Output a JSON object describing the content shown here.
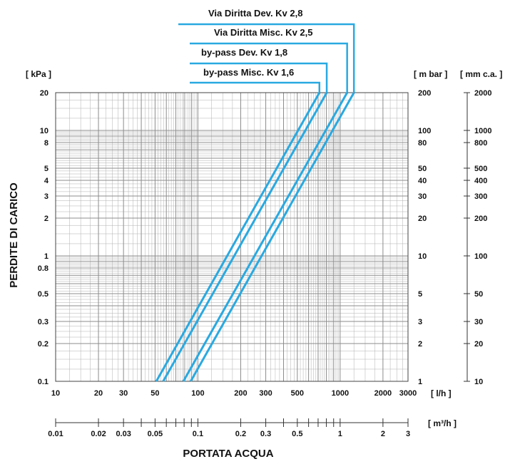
{
  "chart_data": {
    "type": "line",
    "x_scale": "log",
    "y_scale": "log",
    "xlim": [
      10,
      3000
    ],
    "ylim": [
      0.1,
      20
    ],
    "grid": true,
    "xlabel": "PORTATA ACQUA",
    "ylabel": "PERDITE DI CARICO",
    "x_unit": "[ l/h ]",
    "y_unit_left": "[ kPa ]",
    "y_unit_right_1": "[ m bar ]",
    "y_unit_right_2": "[ mm c.a. ]",
    "x2_unit": "[ m³/h ]",
    "x_ticks": [
      10,
      20,
      30,
      50,
      100,
      200,
      300,
      500,
      1000,
      2000,
      3000
    ],
    "x_tick_labels": [
      "10",
      "20",
      "30",
      "50",
      "100",
      "200",
      "300",
      "500",
      "1000",
      "2000",
      "3000"
    ],
    "x2_ticks": [
      0.01,
      0.02,
      0.03,
      0.05,
      0.1,
      0.2,
      0.3,
      0.5,
      1,
      2,
      3
    ],
    "x2_tick_labels": [
      "0.01",
      "0.02",
      "0.03",
      "0.05",
      "0.1",
      "0.2",
      "0.3",
      "0.5",
      "1",
      "2",
      "3"
    ],
    "y_ticks": [
      0.1,
      0.2,
      0.3,
      0.5,
      0.8,
      1,
      2,
      3,
      4,
      5,
      8,
      10,
      20
    ],
    "y_tick_labels": [
      "0.1",
      "0.2",
      "0.3",
      "0.5",
      "0.8",
      "1",
      "2",
      "3",
      "4",
      "5",
      "8",
      "10",
      "20"
    ],
    "y2_tick_labels": [
      "1",
      "2",
      "3",
      "5",
      "10",
      "20",
      "30",
      "40",
      "50",
      "80",
      "100",
      "200"
    ],
    "y2_ticks": [
      0.1,
      0.2,
      0.3,
      0.5,
      1,
      2,
      3,
      4,
      5,
      8,
      10,
      20
    ],
    "y3_tick_labels": [
      "10",
      "20",
      "30",
      "50",
      "100",
      "200",
      "300",
      "400",
      "500",
      "800",
      "1000",
      "2000"
    ],
    "y3_ticks": [
      0.1,
      0.2,
      0.3,
      0.5,
      1,
      2,
      3,
      4,
      5,
      8,
      10,
      20
    ],
    "series": [
      {
        "name": "Via Diritta Dev. Kv 2,8",
        "x": [
          89,
          1250
        ],
        "y": [
          0.1,
          20
        ]
      },
      {
        "name": "Via Diritta Misc. Kv 2,5",
        "x": [
          79,
          1120
        ],
        "y": [
          0.1,
          20
        ]
      },
      {
        "name": "by-pass Dev. Kv 1,8",
        "x": [
          57,
          805
        ],
        "y": [
          0.1,
          20
        ]
      },
      {
        "name": "by-pass Misc. Kv 1,6",
        "x": [
          51,
          715
        ],
        "y": [
          0.1,
          20
        ]
      }
    ],
    "line_color": "#29a9e1",
    "grid_color": "#b0b0b0"
  }
}
